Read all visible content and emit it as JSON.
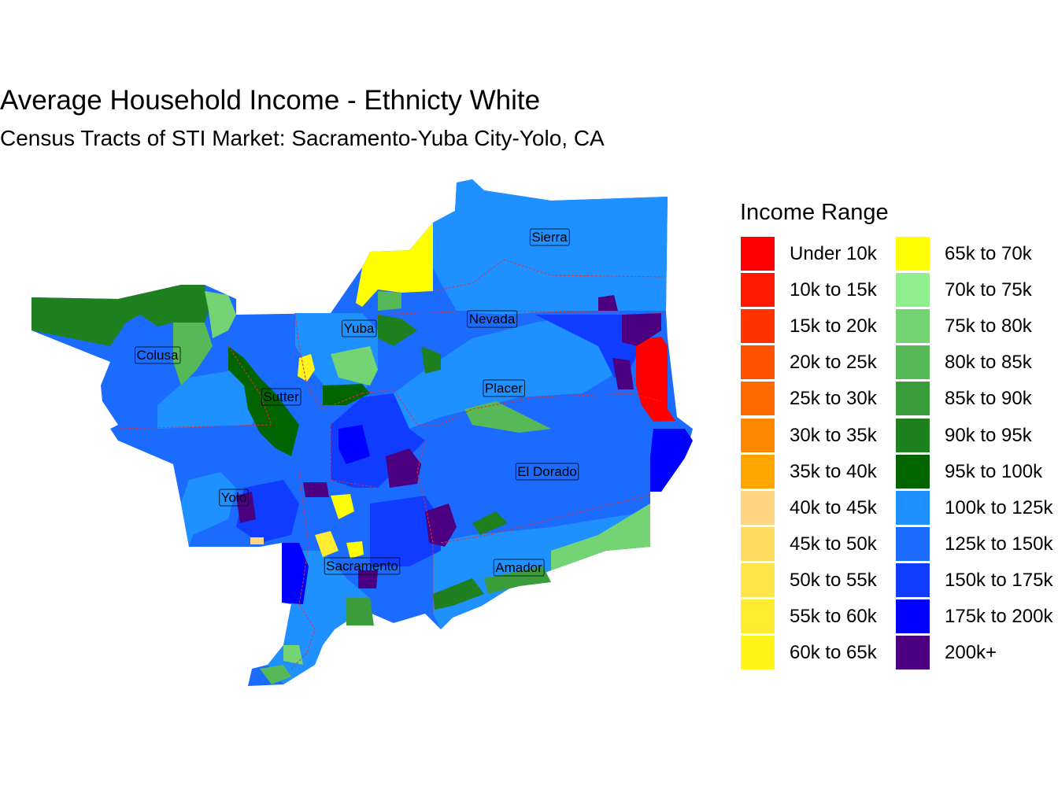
{
  "title": "Average Household Income - Ethnicty White",
  "subtitle": "Census Tracts of STI Market: Sacramento-Yuba City-Yolo, CA",
  "legend": {
    "title": "Income Range",
    "items": [
      {
        "label": "Under 10k",
        "color": "#ff0000"
      },
      {
        "label": "10k to 15k",
        "color": "#ff1a00"
      },
      {
        "label": "15k to 20k",
        "color": "#ff3300"
      },
      {
        "label": "20k to 25k",
        "color": "#ff5200"
      },
      {
        "label": "25k to 30k",
        "color": "#ff6a00"
      },
      {
        "label": "30k to 35k",
        "color": "#ff8800"
      },
      {
        "label": "35k to 40k",
        "color": "#ffa500"
      },
      {
        "label": "40k to 45k",
        "color": "#ffd37f"
      },
      {
        "label": "45k to 50k",
        "color": "#ffdc5e"
      },
      {
        "label": "50k to 55k",
        "color": "#ffe44a"
      },
      {
        "label": "55k to 60k",
        "color": "#ffeb30"
      },
      {
        "label": "60k to 65k",
        "color": "#fff51a"
      },
      {
        "label": "65k to 70k",
        "color": "#ffff00"
      },
      {
        "label": "70k to 75k",
        "color": "#90ee90"
      },
      {
        "label": "75k to 80k",
        "color": "#74d474"
      },
      {
        "label": "80k to 85k",
        "color": "#57b857"
      },
      {
        "label": "85k to 90k",
        "color": "#3a9c3a"
      },
      {
        "label": "90k to 95k",
        "color": "#1f801f"
      },
      {
        "label": "95k to 100k",
        "color": "#006400"
      },
      {
        "label": "100k to 125k",
        "color": "#1e90ff"
      },
      {
        "label": "125k to 150k",
        "color": "#1c6bff"
      },
      {
        "label": "150k to 175k",
        "color": "#0f3cff"
      },
      {
        "label": "175k to 200k",
        "color": "#0000ff"
      },
      {
        "label": "200k+",
        "color": "#4b0082"
      }
    ]
  },
  "counties": [
    {
      "name": "Sierra"
    },
    {
      "name": "Nevada"
    },
    {
      "name": "Yuba"
    },
    {
      "name": "Colusa"
    },
    {
      "name": "Placer"
    },
    {
      "name": "Sutter"
    },
    {
      "name": "El Dorado"
    },
    {
      "name": "Yolo"
    },
    {
      "name": "Amador"
    },
    {
      "name": "Sacramento"
    }
  ]
}
